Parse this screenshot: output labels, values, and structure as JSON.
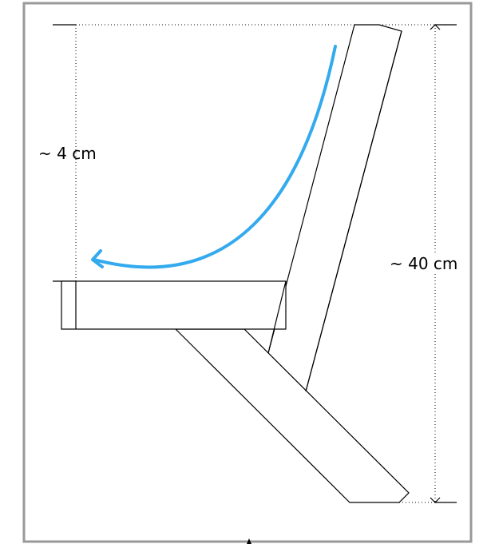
{
  "labels": {
    "left_dimension": "~ 4 cm",
    "right_dimension": "~ 40 cm"
  },
  "colors": {
    "frame": "#999999",
    "line": "#000000",
    "arrow": "#33aaee"
  }
}
